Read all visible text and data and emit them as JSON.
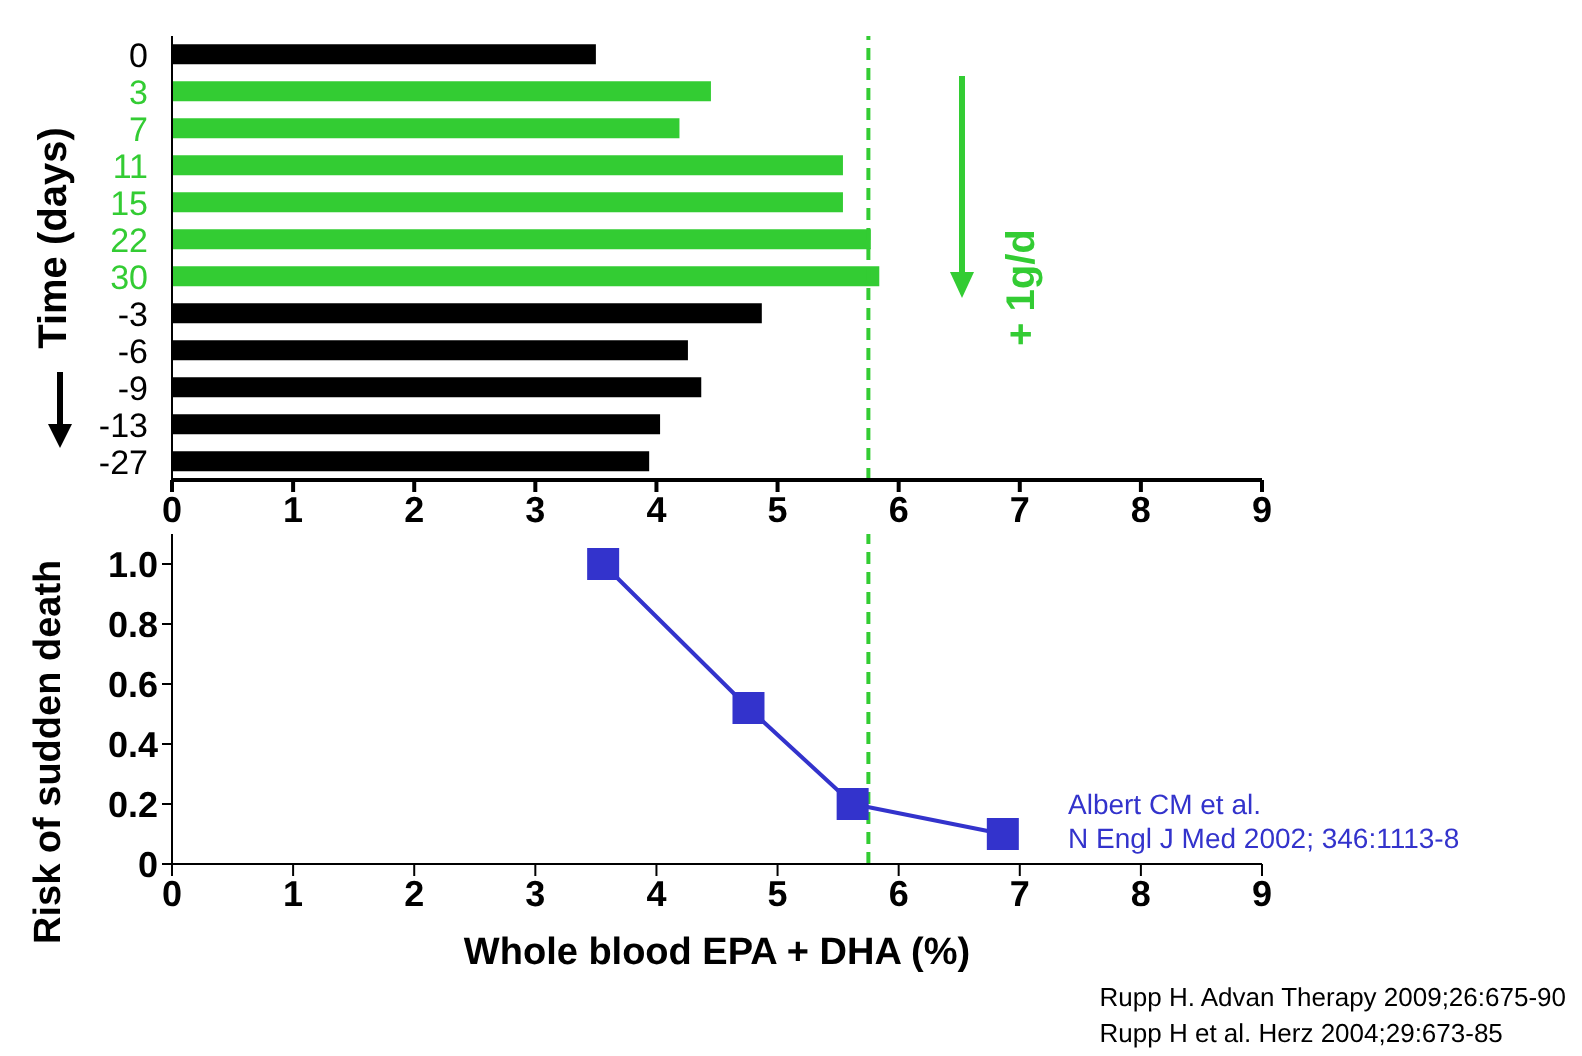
{
  "chart_data": [
    {
      "type": "bar",
      "orientation": "horizontal",
      "ylabel": "Time (days)",
      "categories": [
        "0",
        "3",
        "7",
        "11",
        "15",
        "22",
        "30",
        "-3",
        "-6",
        "-9",
        "-13",
        "-27"
      ],
      "values": [
        3.5,
        4.45,
        4.19,
        5.54,
        5.54,
        5.77,
        5.84,
        4.87,
        4.26,
        4.37,
        4.03,
        3.94
      ],
      "colors": [
        "#000000",
        "#33cc33",
        "#33cc33",
        "#33cc33",
        "#33cc33",
        "#33cc33",
        "#33cc33",
        "#000000",
        "#000000",
        "#000000",
        "#000000",
        "#000000"
      ],
      "xlim": [
        0,
        9
      ],
      "xticks": [
        0,
        1,
        2,
        3,
        4,
        5,
        6,
        7,
        8,
        9
      ],
      "ref_lines": [
        {
          "axis": "x",
          "value": 5.75,
          "color": "#33cc33",
          "line_style": "dashed"
        }
      ],
      "annotations": [
        "+ 1g/d"
      ],
      "grid": false,
      "legend": false
    },
    {
      "type": "line",
      "xlabel": "Whole blood EPA + DHA (%)",
      "ylabel": "Risk of sudden death",
      "x": [
        3.56,
        4.76,
        5.62,
        6.86
      ],
      "series": [
        {
          "color": "#3333cc",
          "values": [
            1.0,
            0.52,
            0.2,
            0.1
          ]
        }
      ],
      "marker": "square",
      "line_style": "solid",
      "xlim": [
        0,
        9
      ],
      "xticks": [
        0,
        1,
        2,
        3,
        4,
        5,
        6,
        7,
        8,
        9
      ],
      "ylim": [
        0,
        1.1
      ],
      "yticks": [
        0,
        0.2,
        0.4,
        0.6,
        0.8,
        {
          "value": 1,
          "label": "1.0"
        }
      ],
      "ref_lines": [
        {
          "axis": "x",
          "value": 5.75,
          "color": "#33cc33",
          "line_style": "dashed"
        }
      ],
      "annotations": [
        "Albert CM et al.\nN Engl J Med 2002; 346:1113-8",
        "Rupp H. Advan Therapy 2009;26:675-90",
        "Rupp H et al. Herz 2004;29:673-85"
      ],
      "grid": false,
      "legend": false
    }
  ]
}
